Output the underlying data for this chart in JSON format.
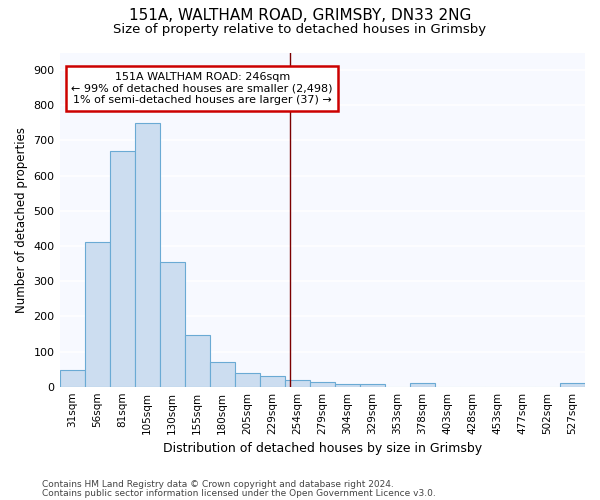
{
  "title1": "151A, WALTHAM ROAD, GRIMSBY, DN33 2NG",
  "title2": "Size of property relative to detached houses in Grimsby",
  "xlabel": "Distribution of detached houses by size in Grimsby",
  "ylabel": "Number of detached properties",
  "categories": [
    "31sqm",
    "56sqm",
    "81sqm",
    "105sqm",
    "130sqm",
    "155sqm",
    "180sqm",
    "205sqm",
    "229sqm",
    "254sqm",
    "279sqm",
    "304sqm",
    "329sqm",
    "353sqm",
    "378sqm",
    "403sqm",
    "428sqm",
    "453sqm",
    "477sqm",
    "502sqm",
    "527sqm"
  ],
  "values": [
    48,
    410,
    670,
    750,
    355,
    148,
    70,
    38,
    30,
    18,
    12,
    8,
    8,
    0,
    10,
    0,
    0,
    0,
    0,
    0,
    10
  ],
  "bar_color": "#ccddf0",
  "bar_edge_color": "#6aaad4",
  "vline_x": 8.72,
  "vline_color": "#7b0000",
  "annotation_line1": "151A WALTHAM ROAD: 246sqm",
  "annotation_line2": "← 99% of detached houses are smaller (2,498)",
  "annotation_line3": "1% of semi-detached houses are larger (37) →",
  "annotation_box_color": "#ffffff",
  "annotation_box_edge": "#cc0000",
  "ylim": [
    0,
    950
  ],
  "yticks": [
    0,
    100,
    200,
    300,
    400,
    500,
    600,
    700,
    800,
    900
  ],
  "footer1": "Contains HM Land Registry data © Crown copyright and database right 2024.",
  "footer2": "Contains public sector information licensed under the Open Government Licence v3.0.",
  "bg_color": "#ffffff",
  "plot_bg_color": "#f7f9ff",
  "grid_color": "#ffffff",
  "title_fontsize": 11,
  "subtitle_fontsize": 9.5,
  "tick_fontsize": 7.5,
  "ylabel_fontsize": 8.5,
  "xlabel_fontsize": 9,
  "annotation_fontsize": 8,
  "footer_fontsize": 6.5
}
